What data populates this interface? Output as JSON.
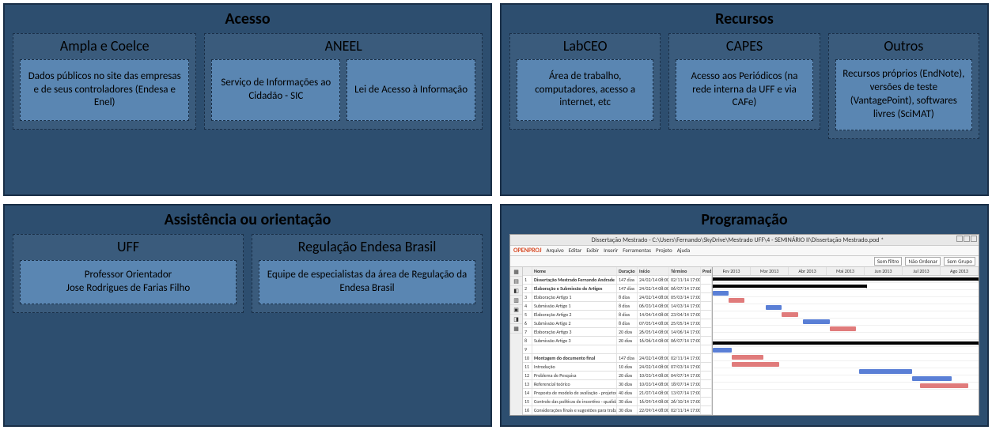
{
  "colors": {
    "panel_bg": "#2d4e6f",
    "panel_border": "#1a2f47",
    "sub_bg": "#3a5b7c",
    "card_bg": "#5a86b2",
    "gantt_bar_blue": "#5a7fd6",
    "gantt_bar_red": "#e07b7b",
    "gantt_summary": "#000000"
  },
  "panels": {
    "acesso": {
      "title": "Acesso",
      "subs": {
        "ampla": {
          "title": "Ampla e Coelce",
          "cards": [
            "Dados públicos no site das empresas e de seus controladores (Endesa e Enel)"
          ]
        },
        "aneel": {
          "title": "ANEEL",
          "cards": [
            "Serviço de Informações ao Cidadão - SIC",
            "Lei de Acesso à Informação"
          ]
        }
      }
    },
    "recursos": {
      "title": "Recursos",
      "subs": {
        "labceo": {
          "title": "LabCEO",
          "cards": [
            "Área de trabalho, computadores, acesso a internet, etc"
          ]
        },
        "capes": {
          "title": "CAPES",
          "cards": [
            "Acesso aos Periódicos (na rede interna da UFF e via CAFe)"
          ]
        },
        "outros": {
          "title": "Outros",
          "cards": [
            "Recursos próprios (EndNote), versões de teste (VantagePoint), softwares livres (SciMAT)"
          ]
        }
      }
    },
    "assistencia": {
      "title": "Assistência ou orientação",
      "subs": {
        "uff": {
          "title": "UFF",
          "cards": [
            "Professor Orientador\nJose Rodrigues de Farias Filho"
          ]
        },
        "regulacao": {
          "title": "Regulação Endesa Brasil",
          "cards": [
            "Equipe de especialistas da área de Regulação da Endesa Brasil"
          ]
        }
      }
    },
    "programacao": {
      "title": "Programação",
      "gantt": {
        "window_title": "Dissertação Mestrado - C:\\Users\\Fernando\\SkyDrive\\Mestrado UFF\\4 - SEMINÁRIO II\\Dissertação Mestrado.pod *",
        "app_logo": "OPENPROJ",
        "menu": [
          "Arquivo",
          "Editar",
          "Exibir",
          "Inserir",
          "Ferramentas",
          "Projeto",
          "Ajuda"
        ],
        "toolbar_filters": [
          "Sem filtro",
          "Não Ordenar",
          "Sem Grupo"
        ],
        "columns": [
          "",
          "Nome",
          "Duração",
          "Início",
          "Término",
          "Pred..."
        ],
        "timeline": [
          "Fev 2013",
          "Mar 2013",
          "Abr 2013",
          "Mai 2013",
          "Jun 2013",
          "Jul 2013",
          "Ago 2013"
        ],
        "rows": [
          {
            "n": 1,
            "name": "Dissertação Mestrado Fernando Andrade",
            "dur": "147 dias",
            "ini": "24/02/14 08:00",
            "fim": "02/11/14 17:00",
            "bold": true,
            "type": "summary",
            "start": 0,
            "len": 100
          },
          {
            "n": 2,
            "name": "Elaboração e Submissão de Artigos",
            "dur": "147 dias",
            "ini": "24/02/14 08:00",
            "fim": "06/07/14 17:00",
            "bold": true,
            "type": "summary",
            "start": 0,
            "len": 58
          },
          {
            "n": 3,
            "name": "Elaboração Artigo 1",
            "dur": "8 dias",
            "ini": "24/02/14 08:00",
            "fim": "05/03/14 17:00",
            "type": "bar",
            "color": "blue",
            "start": 0,
            "len": 6
          },
          {
            "n": 4,
            "name": "Submissão Artigo 1",
            "dur": "8 dias",
            "ini": "06/03/14 08:00",
            "fim": "14/03/14 17:00",
            "type": "bar",
            "color": "red",
            "start": 6,
            "len": 6
          },
          {
            "n": 5,
            "name": "Elaboração Artigo 2",
            "dur": "8 dias",
            "ini": "14/04/14 08:00",
            "fim": "23/04/14 17:00",
            "type": "bar",
            "color": "blue",
            "start": 20,
            "len": 6
          },
          {
            "n": 6,
            "name": "Submissão Artigo 2",
            "dur": "8 dias",
            "ini": "07/05/14 08:00",
            "fim": "25/05/14 17:00",
            "type": "bar",
            "color": "red",
            "start": 26,
            "len": 6
          },
          {
            "n": 7,
            "name": "Elaboração Artigo 3",
            "dur": "20 dias",
            "ini": "26/05/14 08:00",
            "fim": "14/06/14 17:00",
            "type": "bar",
            "color": "blue",
            "start": 34,
            "len": 10
          },
          {
            "n": 8,
            "name": "Submissão Artigo 3",
            "dur": "20 dias",
            "ini": "16/06/14 08:00",
            "fim": "06/07/14 17:00",
            "type": "bar",
            "color": "red",
            "start": 44,
            "len": 10
          },
          {
            "n": 9,
            "name": "",
            "dur": "",
            "ini": "",
            "fim": "",
            "type": "none"
          },
          {
            "n": 10,
            "name": "Montagem do documento final",
            "dur": "147 dias",
            "ini": "24/02/14 08:00",
            "fim": "02/11/14 17:00",
            "bold": true,
            "type": "summary",
            "start": 0,
            "len": 100
          },
          {
            "n": 11,
            "name": "Introdução",
            "dur": "10 dias",
            "ini": "24/02/14 08:00",
            "fim": "07/03/14 17:00",
            "type": "bar",
            "color": "blue",
            "start": 0,
            "len": 7
          },
          {
            "n": 12,
            "name": "Problema de Pesquisa",
            "dur": "20 dias",
            "ini": "10/03/14 08:00",
            "fim": "04/07/14 17:00",
            "type": "bar",
            "color": "red",
            "start": 7,
            "len": 12
          },
          {
            "n": 13,
            "name": "Referencial teórico",
            "dur": "30 dias",
            "ini": "10/03/14 08:00",
            "fim": "18/07/14 17:00",
            "type": "bar",
            "color": "red",
            "start": 7,
            "len": 18
          },
          {
            "n": 14,
            "name": "Proposta de modelo de avaliação - projetos qualidade fornecimento",
            "dur": "40 dias",
            "ini": "21/07/14 08:00",
            "fim": "13/07/14 17:00",
            "type": "bar",
            "color": "blue",
            "start": 55,
            "len": 20
          },
          {
            "n": 15,
            "name": "Controle das políticas de incentivo - qualidade fornecimento",
            "dur": "30 dias",
            "ini": "16/09/14 08:00",
            "fim": "26/10/14 17:00",
            "type": "bar",
            "color": "blue",
            "start": 75,
            "len": 15
          },
          {
            "n": 16,
            "name": "Considerações finais e sugestões para trabalhos futuros",
            "dur": "30 dias",
            "ini": "22/09/14 08:00",
            "fim": "02/11/14 17:00",
            "type": "bar",
            "color": "red",
            "start": 78,
            "len": 18
          }
        ]
      }
    }
  }
}
